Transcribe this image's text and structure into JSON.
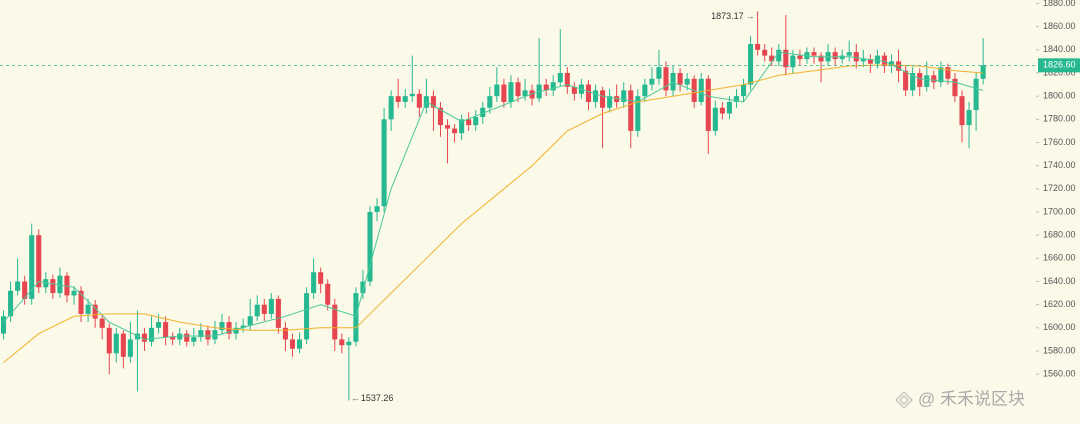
{
  "chart_data": {
    "type": "candlestick",
    "up_color": "#26b891",
    "down_color": "#e5464f",
    "xlim": [
      -0.5,
      146.5
    ],
    "ylim": [
      1517,
      1883
    ],
    "yticks": [
      {
        "value": 1560,
        "label": "1560.00"
      },
      {
        "value": 1580,
        "label": "1580.00"
      },
      {
        "value": 1600,
        "label": "1600.00"
      },
      {
        "value": 1620,
        "label": "1620.00"
      },
      {
        "value": 1640,
        "label": "1640.00"
      },
      {
        "value": 1660,
        "label": "1660.00"
      },
      {
        "value": 1680,
        "label": "1680.00"
      },
      {
        "value": 1700,
        "label": "1700.00"
      },
      {
        "value": 1720,
        "label": "1720.00"
      },
      {
        "value": 1740,
        "label": "1740.00"
      },
      {
        "value": 1760,
        "label": "1760.00"
      },
      {
        "value": 1780,
        "label": "1780.00"
      },
      {
        "value": 1800,
        "label": "1800.00"
      },
      {
        "value": 1820,
        "label": "1820.00"
      },
      {
        "value": 1840,
        "label": "1840.00"
      },
      {
        "value": 1860,
        "label": "1860.00"
      },
      {
        "value": 1880,
        "label": "1880.00"
      }
    ],
    "open": [
      1595,
      1610,
      1632,
      1640,
      1625,
      1680,
      1635,
      1642,
      1630,
      1645,
      1628,
      1632,
      1612,
      1620,
      1608,
      1600,
      1578,
      1595,
      1575,
      1590,
      1595,
      1588,
      1600,
      1605,
      1592,
      1590,
      1595,
      1588,
      1592,
      1598,
      1590,
      1598,
      1605,
      1595,
      1600,
      1602,
      1610,
      1620,
      1612,
      1625,
      1600,
      1590,
      1582,
      1590,
      1630,
      1648,
      1638,
      1620,
      1590,
      1585,
      1588,
      1630,
      1640,
      1700,
      1705,
      1780,
      1800,
      1795,
      1800,
      1802,
      1790,
      1800,
      1790,
      1775,
      1772,
      1768,
      1780,
      1775,
      1782,
      1790,
      1800,
      1810,
      1795,
      1812,
      1800,
      1805,
      1798,
      1810,
      1805,
      1812,
      1820,
      1808,
      1802,
      1810,
      1795,
      1805,
      1790,
      1800,
      1795,
      1805,
      1770,
      1800,
      1810,
      1815,
      1825,
      1805,
      1820,
      1810,
      1815,
      1795,
      1815,
      1770,
      1790,
      1785,
      1795,
      1800,
      1810,
      1845,
      1840,
      1835,
      1830,
      1840,
      1825,
      1835,
      1832,
      1838,
      1835,
      1830,
      1838,
      1832,
      1835,
      1838,
      1830,
      1832,
      1828,
      1835,
      1826,
      1830,
      1822,
      1805,
      1820,
      1808,
      1818,
      1812,
      1825,
      1815,
      1800,
      1775,
      1788,
      1815
    ],
    "high": [
      1615,
      1640,
      1660,
      1645,
      1690,
      1685,
      1648,
      1646,
      1652,
      1648,
      1636,
      1636,
      1625,
      1624,
      1612,
      1604,
      1600,
      1598,
      1605,
      1615,
      1600,
      1610,
      1612,
      1610,
      1596,
      1600,
      1598,
      1600,
      1604,
      1602,
      1606,
      1612,
      1610,
      1605,
      1608,
      1625,
      1628,
      1625,
      1630,
      1628,
      1605,
      1595,
      1596,
      1635,
      1660,
      1652,
      1642,
      1625,
      1595,
      1592,
      1635,
      1650,
      1705,
      1712,
      1790,
      1805,
      1815,
      1806,
      1835,
      1806,
      1815,
      1805,
      1795,
      1780,
      1776,
      1784,
      1786,
      1788,
      1795,
      1808,
      1825,
      1815,
      1818,
      1816,
      1815,
      1810,
      1850,
      1815,
      1818,
      1858,
      1825,
      1812,
      1815,
      1814,
      1810,
      1808,
      1806,
      1810,
      1812,
      1810,
      1806,
      1815,
      1825,
      1840,
      1830,
      1826,
      1824,
      1820,
      1818,
      1820,
      1818,
      1796,
      1795,
      1800,
      1806,
      1815,
      1852,
      1873.17,
      1845,
      1842,
      1845,
      1870,
      1840,
      1840,
      1842,
      1842,
      1838,
      1845,
      1842,
      1840,
      1848,
      1845,
      1840,
      1836,
      1840,
      1838,
      1836,
      1840,
      1826,
      1825,
      1824,
      1830,
      1822,
      1830,
      1828,
      1820,
      1805,
      1795,
      1820,
      1850
    ],
    "low": [
      1590,
      1605,
      1628,
      1620,
      1620,
      1630,
      1630,
      1625,
      1626,
      1622,
      1620,
      1605,
      1605,
      1600,
      1590,
      1560,
      1570,
      1565,
      1570,
      1545,
      1580,
      1584,
      1595,
      1585,
      1585,
      1585,
      1584,
      1584,
      1588,
      1585,
      1586,
      1594,
      1590,
      1590,
      1596,
      1598,
      1606,
      1606,
      1608,
      1595,
      1580,
      1575,
      1578,
      1586,
      1625,
      1630,
      1615,
      1580,
      1578,
      1537.26,
      1584,
      1625,
      1636,
      1692,
      1700,
      1770,
      1790,
      1790,
      1795,
      1782,
      1785,
      1770,
      1765,
      1742,
      1760,
      1762,
      1770,
      1770,
      1776,
      1785,
      1795,
      1790,
      1790,
      1795,
      1796,
      1792,
      1795,
      1800,
      1800,
      1808,
      1802,
      1796,
      1798,
      1788,
      1790,
      1755,
      1786,
      1790,
      1790,
      1755,
      1765,
      1795,
      1805,
      1810,
      1800,
      1800,
      1804,
      1805,
      1790,
      1792,
      1750,
      1766,
      1780,
      1780,
      1790,
      1795,
      1805,
      1835,
      1830,
      1826,
      1826,
      1818,
      1820,
      1826,
      1828,
      1828,
      1812,
      1826,
      1826,
      1828,
      1830,
      1824,
      1825,
      1820,
      1824,
      1820,
      1820,
      1812,
      1800,
      1800,
      1800,
      1804,
      1806,
      1808,
      1810,
      1795,
      1760,
      1755,
      1770,
      1810
    ],
    "close": [
      1610,
      1632,
      1640,
      1625,
      1680,
      1635,
      1642,
      1630,
      1645,
      1628,
      1632,
      1612,
      1620,
      1608,
      1600,
      1578,
      1595,
      1575,
      1590,
      1595,
      1588,
      1600,
      1605,
      1592,
      1590,
      1595,
      1588,
      1592,
      1598,
      1590,
      1598,
      1605,
      1595,
      1600,
      1602,
      1610,
      1620,
      1612,
      1625,
      1600,
      1590,
      1582,
      1590,
      1630,
      1648,
      1638,
      1620,
      1590,
      1585,
      1588,
      1630,
      1640,
      1700,
      1705,
      1780,
      1800,
      1795,
      1800,
      1802,
      1790,
      1800,
      1790,
      1775,
      1772,
      1768,
      1780,
      1775,
      1782,
      1790,
      1800,
      1810,
      1795,
      1812,
      1800,
      1805,
      1798,
      1810,
      1805,
      1812,
      1820,
      1808,
      1802,
      1810,
      1795,
      1805,
      1790,
      1800,
      1795,
      1805,
      1770,
      1800,
      1810,
      1815,
      1825,
      1805,
      1820,
      1810,
      1815,
      1795,
      1815,
      1770,
      1790,
      1785,
      1795,
      1800,
      1810,
      1845,
      1840,
      1835,
      1830,
      1840,
      1825,
      1835,
      1832,
      1838,
      1835,
      1830,
      1838,
      1832,
      1835,
      1838,
      1830,
      1832,
      1828,
      1835,
      1826,
      1830,
      1822,
      1805,
      1820,
      1808,
      1818,
      1812,
      1825,
      1815,
      1800,
      1775,
      1788,
      1815,
      1826.6
    ],
    "lines": [
      {
        "color": "#4cc99a",
        "x": [
          0,
          5,
          10,
          15,
          20,
          25,
          30,
          35,
          40,
          45,
          50,
          55,
          60,
          65,
          70,
          75,
          80,
          85,
          90,
          95,
          100,
          105,
          110,
          115,
          120,
          125,
          130,
          135,
          139
        ],
        "values": [
          1605,
          1640,
          1635,
          1605,
          1590,
          1593,
          1593,
          1602,
          1610,
          1620,
          1610,
          1720,
          1795,
          1778,
          1790,
          1802,
          1810,
          1800,
          1795,
          1812,
          1800,
          1795,
          1838,
          1834,
          1834,
          1830,
          1815,
          1812,
          1805
        ]
      },
      {
        "color": "#f2b12c",
        "x": [
          0,
          5,
          10,
          15,
          20,
          25,
          30,
          35,
          40,
          45,
          50,
          55,
          60,
          65,
          70,
          75,
          80,
          85,
          90,
          95,
          100,
          105,
          110,
          115,
          120,
          125,
          130,
          135,
          139
        ],
        "values": [
          1570,
          1595,
          1610,
          1612,
          1612,
          1605,
          1600,
          1598,
          1598,
          1600,
          1600,
          1630,
          1660,
          1690,
          1715,
          1740,
          1770,
          1785,
          1795,
          1800,
          1805,
          1810,
          1818,
          1822,
          1826,
          1827,
          1826,
          1822,
          1820
        ]
      }
    ],
    "last_price": {
      "value": 1826.6,
      "label": "1826.60"
    },
    "high_label": "1873.17",
    "low_label": "1537.26",
    "watermark": "@ 禾禾说区块"
  }
}
